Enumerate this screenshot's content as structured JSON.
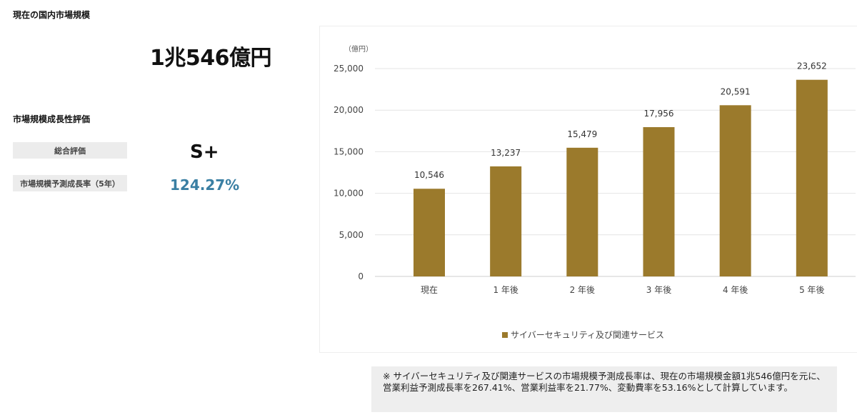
{
  "left": {
    "current_title": "現在の国内市場規模",
    "market_size": "1兆546億円",
    "growth_title": "市場規模成長性評価",
    "overall_label": "総合評価",
    "overall_value": "S+",
    "growth_label": "市場規模予測成長率（5年）",
    "growth_value": "124.27%"
  },
  "colors": {
    "bar": "#9b7a2c",
    "growth_value": "#3a7fa3"
  },
  "chart_data": {
    "type": "bar",
    "unit_label": "（億円）",
    "categories": [
      "現在",
      "1 年後",
      "2 年後",
      "3 年後",
      "4 年後",
      "5 年後"
    ],
    "series": [
      {
        "name": "サイバーセキュリティ及び関連サービス",
        "values": [
          10546,
          13237,
          15479,
          17956,
          20591,
          23652
        ]
      }
    ],
    "value_labels": [
      "10,546",
      "13,237",
      "15,479",
      "17,956",
      "20,591",
      "23,652"
    ],
    "yticks": [
      "0",
      "5,000",
      "10,000",
      "15,000",
      "20,000",
      "25,000"
    ],
    "ylim": [
      0,
      25000
    ],
    "grid": true,
    "legend_position": "bottom"
  },
  "note": "※ サイバーセキュリティ及び関連サービスの市場規模予測成長率は、現在の市場規模金額1兆546億円を元に、営業利益予測成長率を267.41%、営業利益率を21.77%、変動費率を53.16%として計算しています。"
}
